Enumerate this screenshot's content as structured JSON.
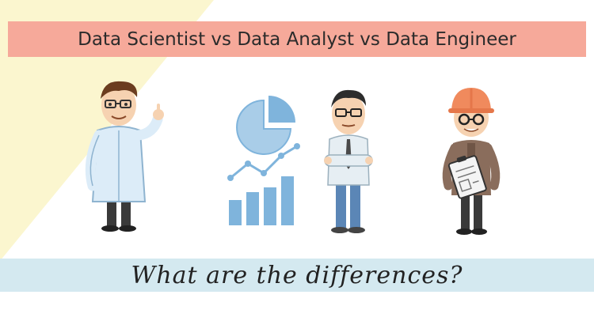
{
  "title": "Data Scientist vs Data Analyst vs Data Engineer",
  "subtitle": "What are the differences?",
  "colors": {
    "title_banner": "#f6a99a",
    "subtitle_banner": "#d4e9f0",
    "background_wedge": "#fbf6cf",
    "chart_blue": "#7fb4dc"
  },
  "illustrations": {
    "data_scientist": "scientist-in-lab-coat-icon",
    "data_analyst": "analyst-with-charts-icon",
    "data_engineer": "engineer-with-hard-hat-icon"
  }
}
